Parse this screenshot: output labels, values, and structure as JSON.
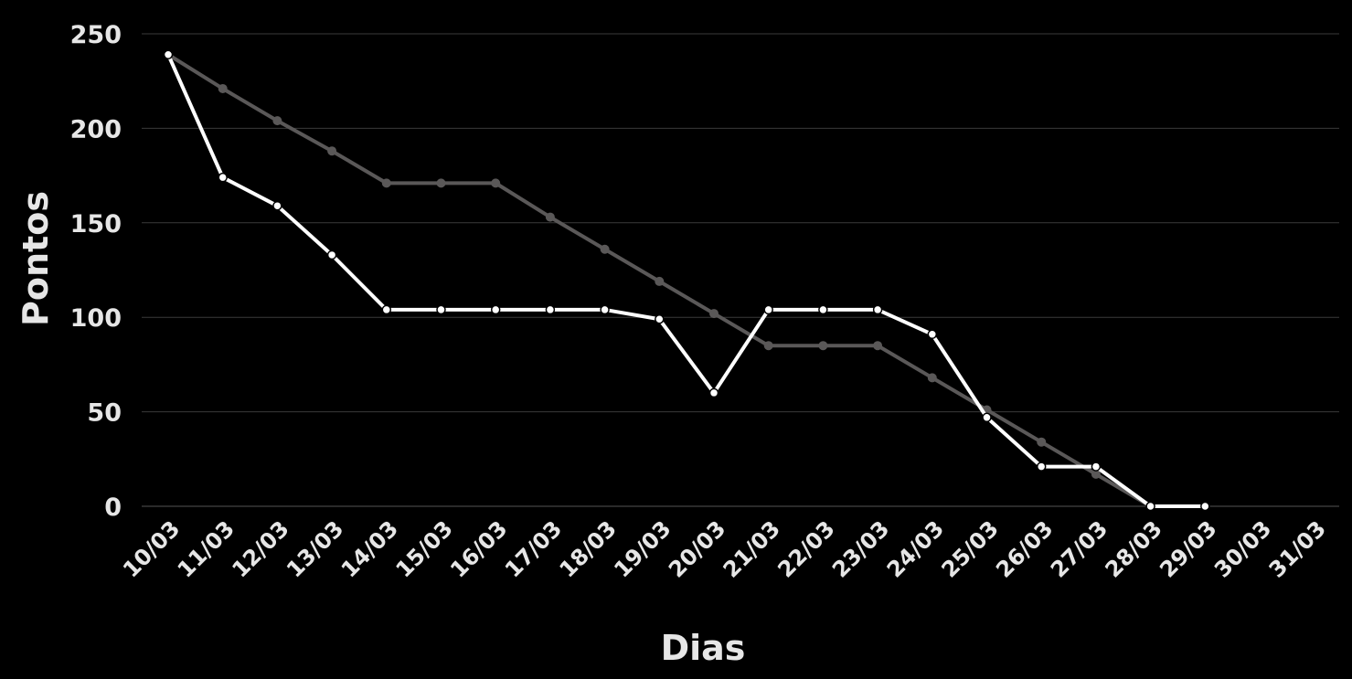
{
  "chart_data": {
    "type": "line",
    "title": "",
    "xlabel": "Dias",
    "ylabel": "Pontos",
    "categories": [
      "10/03",
      "11/03",
      "12/03",
      "13/03",
      "14/03",
      "15/03",
      "16/03",
      "17/03",
      "18/03",
      "19/03",
      "20/03",
      "21/03",
      "22/03",
      "23/03",
      "24/03",
      "25/03",
      "26/03",
      "27/03",
      "28/03",
      "29/03",
      "30/03",
      "31/03"
    ],
    "yticks": [
      0,
      50,
      100,
      150,
      200,
      250
    ],
    "ylim": [
      0,
      250
    ],
    "grid": true,
    "legend": "none",
    "series": [
      {
        "color": "#5a5858",
        "values": [
          239,
          221,
          204,
          188,
          171,
          171,
          171,
          153,
          136,
          119,
          102,
          85,
          85,
          85,
          68,
          51,
          34,
          17,
          0,
          null,
          null,
          null
        ]
      },
      {
        "color": "#ffffff",
        "values": [
          239,
          174,
          159,
          133,
          104,
          104,
          104,
          104,
          104,
          99,
          60,
          104,
          104,
          104,
          91,
          47,
          21,
          21,
          0,
          0,
          null,
          null
        ]
      }
    ],
    "colors": {
      "background": "#000000",
      "grid": "#3a3a3a",
      "text": "#e6e6e6"
    }
  }
}
